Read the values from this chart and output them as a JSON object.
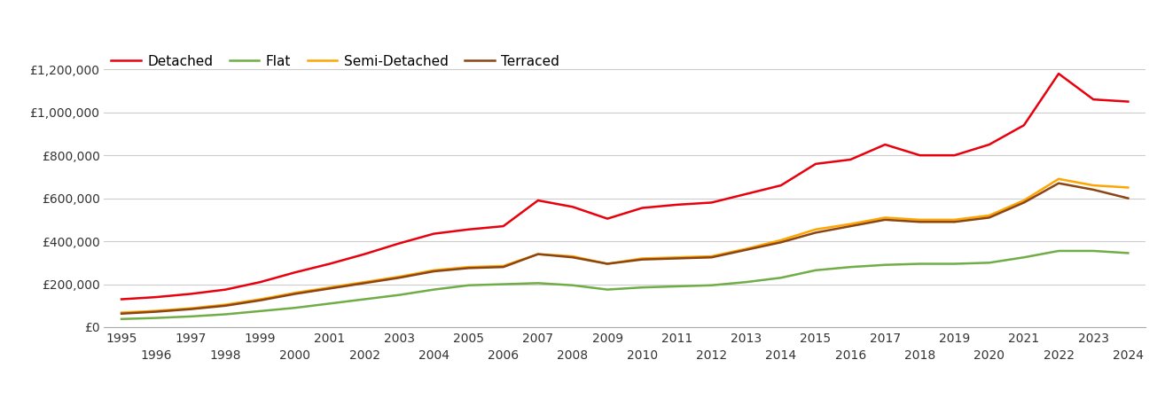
{
  "series": {
    "Detached": {
      "color": "#e8000d",
      "years": [
        1995,
        1996,
        1997,
        1998,
        1999,
        2000,
        2001,
        2002,
        2003,
        2004,
        2005,
        2006,
        2007,
        2008,
        2009,
        2010,
        2011,
        2012,
        2013,
        2014,
        2015,
        2016,
        2017,
        2018,
        2019,
        2020,
        2021,
        2022,
        2023,
        2024
      ],
      "values": [
        130000,
        140000,
        155000,
        175000,
        210000,
        255000,
        295000,
        340000,
        390000,
        435000,
        455000,
        470000,
        590000,
        560000,
        505000,
        555000,
        570000,
        580000,
        620000,
        660000,
        760000,
        780000,
        850000,
        800000,
        800000,
        850000,
        940000,
        1180000,
        1060000,
        1050000
      ]
    },
    "Flat": {
      "color": "#70ad47",
      "years": [
        1995,
        1996,
        1997,
        1998,
        1999,
        2000,
        2001,
        2002,
        2003,
        2004,
        2005,
        2006,
        2007,
        2008,
        2009,
        2010,
        2011,
        2012,
        2013,
        2014,
        2015,
        2016,
        2017,
        2018,
        2019,
        2020,
        2021,
        2022,
        2023,
        2024
      ],
      "values": [
        38000,
        43000,
        50000,
        60000,
        75000,
        90000,
        110000,
        130000,
        150000,
        175000,
        195000,
        200000,
        205000,
        195000,
        175000,
        185000,
        190000,
        195000,
        210000,
        230000,
        265000,
        280000,
        290000,
        295000,
        295000,
        300000,
        325000,
        355000,
        355000,
        345000
      ]
    },
    "Semi-Detached": {
      "color": "#ffa500",
      "years": [
        1995,
        1996,
        1997,
        1998,
        1999,
        2000,
        2001,
        2002,
        2003,
        2004,
        2005,
        2006,
        2007,
        2008,
        2009,
        2010,
        2011,
        2012,
        2013,
        2014,
        2015,
        2016,
        2017,
        2018,
        2019,
        2020,
        2021,
        2022,
        2023,
        2024
      ],
      "values": [
        68000,
        76000,
        88000,
        105000,
        130000,
        160000,
        185000,
        210000,
        235000,
        265000,
        280000,
        285000,
        340000,
        330000,
        295000,
        320000,
        325000,
        330000,
        365000,
        405000,
        455000,
        480000,
        510000,
        500000,
        500000,
        520000,
        590000,
        690000,
        660000,
        650000
      ]
    },
    "Terraced": {
      "color": "#8b4513",
      "years": [
        1995,
        1996,
        1997,
        1998,
        1999,
        2000,
        2001,
        2002,
        2003,
        2004,
        2005,
        2006,
        2007,
        2008,
        2009,
        2010,
        2011,
        2012,
        2013,
        2014,
        2015,
        2016,
        2017,
        2018,
        2019,
        2020,
        2021,
        2022,
        2023,
        2024
      ],
      "values": [
        63000,
        72000,
        84000,
        100000,
        125000,
        155000,
        180000,
        205000,
        230000,
        260000,
        275000,
        280000,
        340000,
        325000,
        295000,
        315000,
        320000,
        325000,
        360000,
        395000,
        440000,
        470000,
        500000,
        490000,
        490000,
        510000,
        580000,
        670000,
        640000,
        600000
      ]
    }
  },
  "ylim": [
    0,
    1300000
  ],
  "yticks": [
    0,
    200000,
    400000,
    600000,
    800000,
    1000000,
    1200000
  ],
  "ytick_labels": [
    "£0",
    "£200,000",
    "£400,000",
    "£600,000",
    "£800,000",
    "£1,000,000",
    "£1,200,000"
  ],
  "xtick_odd": [
    1995,
    1997,
    1999,
    2001,
    2003,
    2005,
    2007,
    2009,
    2011,
    2013,
    2015,
    2017,
    2019,
    2021,
    2023
  ],
  "xtick_even": [
    1996,
    1998,
    2000,
    2002,
    2004,
    2006,
    2008,
    2010,
    2012,
    2014,
    2016,
    2018,
    2020,
    2022,
    2024
  ],
  "bg_color": "#ffffff",
  "plot_bg": "#ffffff",
  "grid_color": "#cccccc",
  "line_width": 1.8,
  "legend_order": [
    "Detached",
    "Flat",
    "Semi-Detached",
    "Terraced"
  ]
}
